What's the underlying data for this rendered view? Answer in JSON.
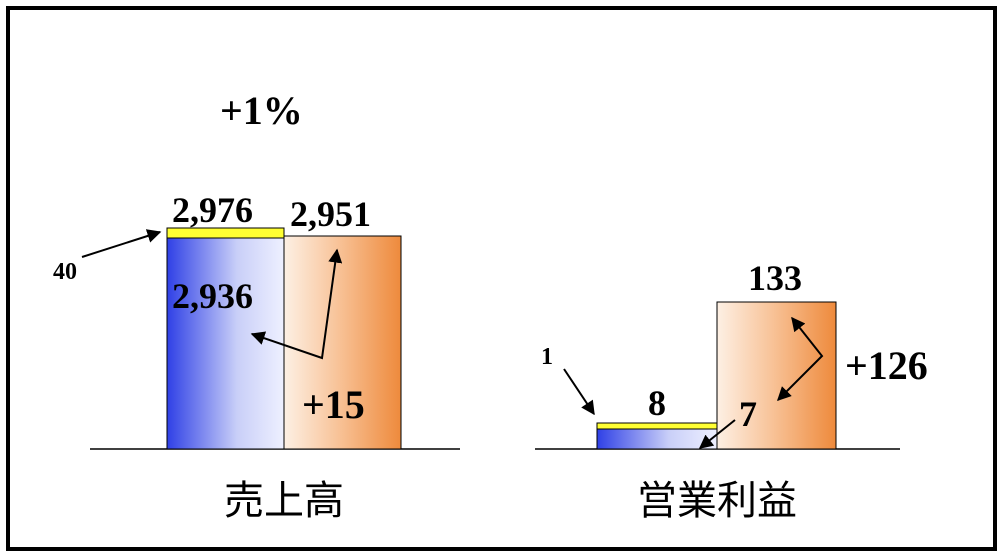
{
  "chart_data": [
    {
      "type": "bar",
      "category": "売上高",
      "bars": [
        {
          "value": 2936,
          "label": "2,936",
          "color": "#3a4be8"
        },
        {
          "value": 2951,
          "label": "2,951",
          "color": "#f0914a"
        }
      ],
      "stack_top": {
        "value": 40,
        "label": "40",
        "color": "#ffff33"
      },
      "total": {
        "value": 2976,
        "label": "2,976"
      },
      "change_label": "+15",
      "change_pct_label": "+1%"
    },
    {
      "type": "bar",
      "category": "営業利益",
      "bars": [
        {
          "value": 7,
          "label": "7",
          "color": "#3a4be8"
        },
        {
          "value": 133,
          "label": "133",
          "color": "#f0914a"
        }
      ],
      "stack_top": {
        "value": 1,
        "label": "1",
        "color": "#ffff33"
      },
      "total": {
        "value": 8,
        "label": "8"
      },
      "change_label": "+126"
    }
  ]
}
